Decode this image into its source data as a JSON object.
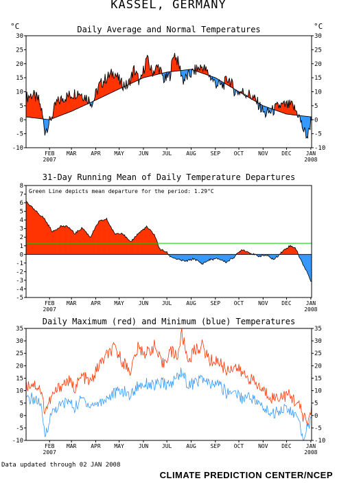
{
  "page": {
    "title": "KASSEL, GERMANY",
    "data_note": "Data updated through 02 JAN 2008",
    "credit": "CLIMATE PREDICTION CENTER/NCEP",
    "colors": {
      "warm": "#ff3300",
      "cool": "#3399ff",
      "mean_line": "#00cc00",
      "max_line": "#ff3300",
      "min_line": "#3399ff"
    }
  },
  "chart_data": [
    {
      "type": "area",
      "title": "Daily Average and Normal Temperatures",
      "ylabel_left": "°C",
      "ylabel_right": "°C",
      "ylim": [
        -10,
        30
      ],
      "yticks": [
        -10,
        -5,
        0,
        5,
        10,
        15,
        20,
        25,
        30
      ],
      "month_ticks": [
        "FEB",
        "MAR",
        "APR",
        "MAY",
        "JUN",
        "JUL",
        "AUG",
        "SEP",
        "OCT",
        "NOV",
        "DEC",
        "JAN"
      ],
      "year_labels": [
        "2007",
        "2008"
      ],
      "x_start": "2007-01-02",
      "x_end": "2008-01-02",
      "series": [
        {
          "name": "Daily Average",
          "dates": [
            "2007-01-02",
            "2007-01-10",
            "2007-01-18",
            "2007-01-22",
            "2007-01-26",
            "2007-02-01",
            "2007-02-10",
            "2007-02-20",
            "2007-03-01",
            "2007-03-10",
            "2007-03-20",
            "2007-03-28",
            "2007-04-05",
            "2007-04-15",
            "2007-04-25",
            "2007-05-03",
            "2007-05-12",
            "2007-05-20",
            "2007-05-28",
            "2007-06-05",
            "2007-06-12",
            "2007-06-20",
            "2007-06-28",
            "2007-07-05",
            "2007-07-10",
            "2007-07-16",
            "2007-07-22",
            "2007-07-30",
            "2007-08-08",
            "2007-08-16",
            "2007-08-24",
            "2007-09-01",
            "2007-09-10",
            "2007-09-18",
            "2007-09-26",
            "2007-10-05",
            "2007-10-15",
            "2007-10-25",
            "2007-11-03",
            "2007-11-12",
            "2007-11-22",
            "2007-12-01",
            "2007-12-08",
            "2007-12-16",
            "2007-12-23",
            "2007-12-28",
            "2008-01-02"
          ],
          "values": [
            8,
            9,
            7,
            3,
            -4,
            -1,
            6,
            8,
            9,
            10,
            8,
            6,
            12,
            15,
            17,
            13,
            12,
            18,
            13,
            22,
            17,
            19,
            14,
            16,
            24,
            20,
            14,
            16,
            18,
            19,
            16,
            13,
            12,
            15,
            10,
            10,
            9,
            6,
            2,
            3,
            5,
            5,
            5,
            2,
            -4,
            -6,
            1
          ]
        },
        {
          "name": "Normal",
          "dates": [
            "2007-01-02",
            "2007-02-01",
            "2007-03-01",
            "2007-04-01",
            "2007-05-01",
            "2007-06-01",
            "2007-07-01",
            "2007-08-01",
            "2007-09-01",
            "2007-10-01",
            "2007-11-01",
            "2007-12-01",
            "2008-01-02"
          ],
          "values": [
            1,
            0,
            3,
            7,
            11,
            15,
            17,
            18,
            15,
            10,
            5,
            2,
            1
          ]
        }
      ]
    },
    {
      "type": "area",
      "title": "31-Day Running Mean of Daily Temperature Departures",
      "annotation": "Green Line depicts mean departure for the period: 1.29°C",
      "ylim": [
        -5,
        8
      ],
      "yticks": [
        -5,
        -4,
        -3,
        -2,
        -1,
        0,
        1,
        2,
        3,
        4,
        5,
        6,
        7,
        8
      ],
      "mean_departure": 1.29,
      "month_ticks": [
        "FEB",
        "MAR",
        "APR",
        "MAY",
        "JUN",
        "JUL",
        "AUG",
        "SEP",
        "OCT",
        "NOV",
        "DEC",
        "JAN"
      ],
      "year_labels": [
        "2007",
        "2008"
      ],
      "dates": [
        "2007-01-02",
        "2007-01-12",
        "2007-01-25",
        "2007-02-05",
        "2007-02-15",
        "2007-02-25",
        "2007-03-05",
        "2007-03-15",
        "2007-03-25",
        "2007-04-05",
        "2007-04-15",
        "2007-04-25",
        "2007-05-05",
        "2007-05-15",
        "2007-05-25",
        "2007-06-05",
        "2007-06-15",
        "2007-06-22",
        "2007-06-30",
        "2007-07-05",
        "2007-07-15",
        "2007-07-25",
        "2007-08-05",
        "2007-08-15",
        "2007-08-25",
        "2007-09-05",
        "2007-09-15",
        "2007-09-25",
        "2007-10-05",
        "2007-10-15",
        "2007-10-25",
        "2007-11-05",
        "2007-11-15",
        "2007-11-25",
        "2007-12-05",
        "2007-12-12",
        "2007-12-20",
        "2007-12-27",
        "2008-01-02"
      ],
      "values": [
        6.2,
        5.2,
        4.2,
        2.6,
        3.3,
        3.2,
        2.4,
        3.1,
        2.0,
        3.8,
        4.1,
        2.4,
        2.5,
        1.4,
        2.4,
        3.2,
        2.3,
        0.6,
        0.3,
        -0.2,
        -0.6,
        -0.8,
        -0.5,
        -1.1,
        -0.6,
        -0.5,
        -0.9,
        -0.3,
        0.6,
        0.2,
        -0.2,
        -0.1,
        -0.6,
        0.3,
        1.0,
        0.8,
        -0.8,
        -2.0,
        -3.3
      ]
    },
    {
      "type": "line",
      "title": "Daily Maximum (red) and Minimum (blue) Temperatures",
      "ylim": [
        -10,
        35
      ],
      "yticks": [
        -10,
        -5,
        0,
        5,
        10,
        15,
        20,
        25,
        30,
        35
      ],
      "month_ticks": [
        "FEB",
        "MAR",
        "APR",
        "MAY",
        "JUN",
        "JUL",
        "AUG",
        "SEP",
        "OCT",
        "NOV",
        "DEC",
        "JAN"
      ],
      "year_labels": [
        "2007",
        "2008"
      ],
      "series": [
        {
          "name": "Maximum",
          "dates": [
            "2007-01-02",
            "2007-01-10",
            "2007-01-20",
            "2007-01-26",
            "2007-02-05",
            "2007-02-15",
            "2007-02-25",
            "2007-03-05",
            "2007-03-15",
            "2007-03-25",
            "2007-04-05",
            "2007-04-15",
            "2007-04-25",
            "2007-05-05",
            "2007-05-15",
            "2007-05-25",
            "2007-06-05",
            "2007-06-15",
            "2007-06-25",
            "2007-07-05",
            "2007-07-15",
            "2007-07-20",
            "2007-07-28",
            "2007-08-05",
            "2007-08-15",
            "2007-08-25",
            "2007-09-05",
            "2007-09-15",
            "2007-09-25",
            "2007-10-05",
            "2007-10-15",
            "2007-10-25",
            "2007-11-05",
            "2007-11-15",
            "2007-11-25",
            "2007-12-05",
            "2007-12-15",
            "2007-12-22",
            "2007-12-28",
            "2008-01-02"
          ],
          "values": [
            12,
            13,
            11,
            2,
            8,
            12,
            14,
            11,
            16,
            13,
            20,
            24,
            27,
            22,
            18,
            27,
            25,
            28,
            20,
            26,
            24,
            33,
            22,
            26,
            28,
            22,
            22,
            18,
            20,
            17,
            15,
            12,
            9,
            7,
            8,
            8,
            5,
            0,
            -3,
            3
          ]
        },
        {
          "name": "Minimum",
          "dates": [
            "2007-01-02",
            "2007-01-10",
            "2007-01-20",
            "2007-01-26",
            "2007-02-05",
            "2007-02-15",
            "2007-02-25",
            "2007-03-05",
            "2007-03-15",
            "2007-03-25",
            "2007-04-05",
            "2007-04-15",
            "2007-04-25",
            "2007-05-05",
            "2007-05-15",
            "2007-05-25",
            "2007-06-05",
            "2007-06-15",
            "2007-06-25",
            "2007-07-05",
            "2007-07-15",
            "2007-07-20",
            "2007-07-28",
            "2007-08-05",
            "2007-08-15",
            "2007-08-25",
            "2007-09-05",
            "2007-09-15",
            "2007-09-25",
            "2007-10-05",
            "2007-10-15",
            "2007-10-25",
            "2007-11-05",
            "2007-11-15",
            "2007-11-25",
            "2007-12-05",
            "2007-12-15",
            "2007-12-22",
            "2007-12-28",
            "2008-01-02"
          ],
          "values": [
            6,
            7,
            5,
            -8,
            2,
            4,
            6,
            3,
            7,
            4,
            5,
            7,
            9,
            10,
            8,
            12,
            13,
            12,
            13,
            12,
            16,
            18,
            12,
            13,
            15,
            12,
            13,
            9,
            10,
            7,
            8,
            5,
            2,
            1,
            3,
            2,
            -1,
            -9,
            -4,
            -2
          ]
        }
      ]
    }
  ]
}
